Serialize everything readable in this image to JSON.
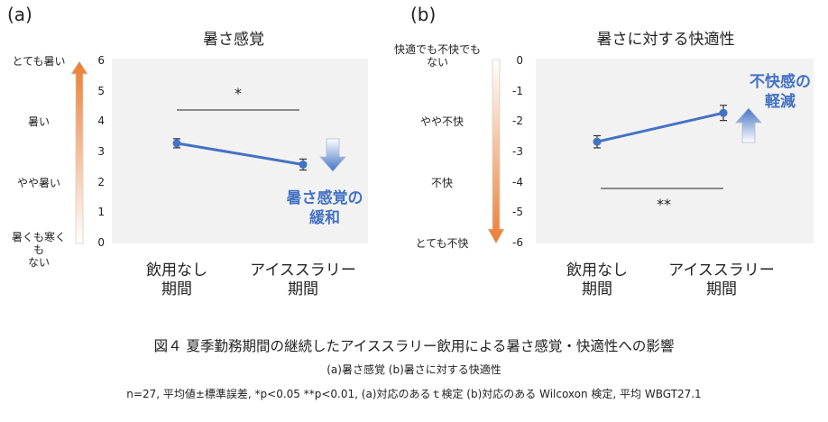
{
  "chart_data": [
    {
      "type": "line",
      "panel_label": "(a)",
      "title": "暑さ感覚",
      "categories": [
        "飲用なし\n期間",
        "アイススラリー\n期間"
      ],
      "series": [
        {
          "name": "暑さ感覚",
          "values": [
            3.3,
            2.6
          ],
          "error": [
            0.15,
            0.18
          ]
        }
      ],
      "ylim": [
        0,
        6
      ],
      "yticks": [
        "0",
        "1",
        "2",
        "3",
        "4",
        "5",
        "6"
      ],
      "scale_labels": [
        {
          "text": "とても暑い",
          "value": 6
        },
        {
          "text": "暑い",
          "value": 4
        },
        {
          "text": "やや暑い",
          "value": 2
        },
        {
          "text": "暑くも寒くも\nない",
          "value": 0
        }
      ],
      "significance": "*",
      "annotation": "暑さ感覚の\n緩和",
      "colors": {
        "line": "#4472c4",
        "scale_top": "#ed7d31",
        "scale_bottom": "#ffffff"
      }
    },
    {
      "type": "line",
      "panel_label": "(b)",
      "title": "暑さに対する快適性",
      "categories": [
        "飲用なし\n期間",
        "アイススラリー\n期間"
      ],
      "series": [
        {
          "name": "快適性",
          "values": [
            -2.65,
            -1.7
          ],
          "error": [
            0.2,
            0.25
          ]
        }
      ],
      "ylim": [
        -6,
        0
      ],
      "yticks": [
        "0",
        "-1",
        "-2",
        "-3",
        "-4",
        "-5",
        "-6"
      ],
      "scale_labels": [
        {
          "text": "快適でも不快でも\nない",
          "value": 0
        },
        {
          "text": "やや不快",
          "value": -2
        },
        {
          "text": "不快",
          "value": -4
        },
        {
          "text": "とても不快",
          "value": -6
        }
      ],
      "significance": "**",
      "annotation": "不快感の\n軽減",
      "colors": {
        "line": "#4472c4",
        "scale_top": "#ffffff",
        "scale_bottom": "#ed7d31"
      }
    }
  ],
  "caption": {
    "main": "図４ 夏季勤務期間の継続したアイススラリー飲用による暑さ感覚・快適性への影響",
    "sub": "(a)暑さ感覚 (b)暑さに対する快適性",
    "note": "n=27, 平均値±標準誤差, *p<0.05 **p<0.01, (a)対応のあるｔ検定 (b)対応のある Wilcoxon 検定, 平均 WBGT27.1"
  }
}
